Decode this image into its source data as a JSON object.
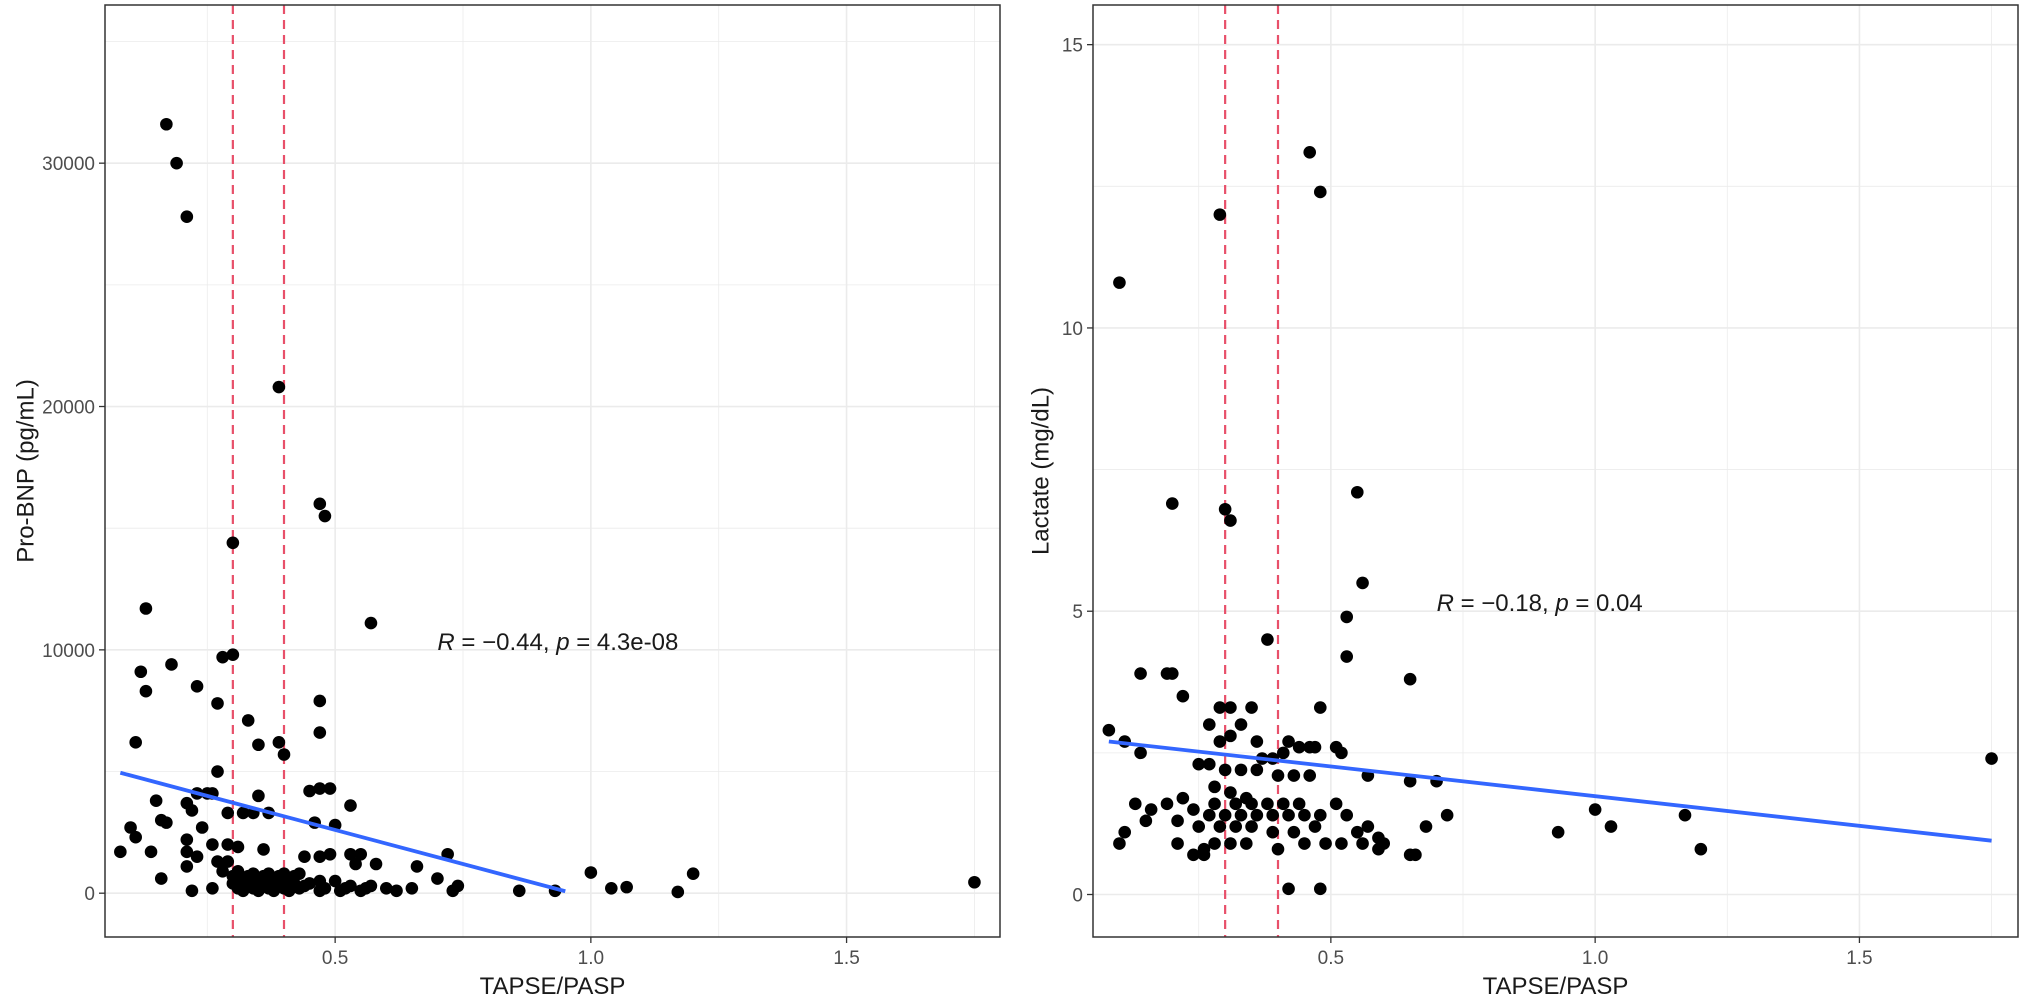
{
  "colors": {
    "points": "#000000",
    "fit_line": "#3366FF",
    "cutoff_lines": "#E8506A",
    "panel_border": "#333333",
    "grid": "#EBEBEB"
  },
  "chart_data": [
    {
      "type": "scatter",
      "xlabel": "TAPSE/PASP",
      "ylabel": "Pro-BNP (pg/mL)",
      "xlim": [
        0.05,
        1.8
      ],
      "ylim": [
        -1800,
        36500
      ],
      "x_ticks": [
        0.5,
        1.0,
        1.5
      ],
      "x_tick_labels": [
        "0.5",
        "1.0",
        "1.5"
      ],
      "y_ticks": [
        0,
        10000,
        20000,
        30000
      ],
      "y_tick_labels": [
        "0",
        "10000",
        "20000",
        "30000"
      ],
      "grid": true,
      "vlines": [
        0.3,
        0.4
      ],
      "fit_line": {
        "x": [
          0.08,
          0.95
        ],
        "y": [
          4950,
          80
        ]
      },
      "annotation": {
        "r_symbol": "R",
        "r_value": " = −0.44, ",
        "p_symbol": "p",
        "p_value": " = 4.3e-08",
        "x": 0.7,
        "y": 10000
      },
      "points": [
        [
          0.17,
          31600
        ],
        [
          0.19,
          30000
        ],
        [
          0.21,
          27800
        ],
        [
          0.39,
          20800
        ],
        [
          0.47,
          16000
        ],
        [
          0.48,
          15500
        ],
        [
          0.3,
          14400
        ],
        [
          0.13,
          11700
        ],
        [
          0.57,
          11100
        ],
        [
          0.3,
          9800
        ],
        [
          0.28,
          9700
        ],
        [
          0.18,
          9400
        ],
        [
          0.12,
          9100
        ],
        [
          0.23,
          8500
        ],
        [
          0.13,
          8300
        ],
        [
          0.47,
          7900
        ],
        [
          0.27,
          7800
        ],
        [
          0.33,
          7100
        ],
        [
          0.47,
          6600
        ],
        [
          0.11,
          6200
        ],
        [
          0.39,
          6200
        ],
        [
          0.35,
          6100
        ],
        [
          0.4,
          5700
        ],
        [
          0.27,
          5000
        ],
        [
          0.47,
          4300
        ],
        [
          0.49,
          4300
        ],
        [
          0.45,
          4200
        ],
        [
          0.23,
          4100
        ],
        [
          0.25,
          4100
        ],
        [
          0.26,
          4100
        ],
        [
          0.35,
          4000
        ],
        [
          0.15,
          3800
        ],
        [
          0.21,
          3700
        ],
        [
          0.53,
          3600
        ],
        [
          0.22,
          3400
        ],
        [
          0.29,
          3300
        ],
        [
          0.32,
          3300
        ],
        [
          0.34,
          3300
        ],
        [
          0.37,
          3300
        ],
        [
          0.16,
          3000
        ],
        [
          0.17,
          2900
        ],
        [
          0.46,
          2900
        ],
        [
          0.5,
          2800
        ],
        [
          0.1,
          2700
        ],
        [
          0.24,
          2700
        ],
        [
          0.11,
          2300
        ],
        [
          0.21,
          2200
        ],
        [
          0.26,
          2000
        ],
        [
          0.29,
          2000
        ],
        [
          0.31,
          1900
        ],
        [
          0.36,
          1800
        ],
        [
          0.08,
          1700
        ],
        [
          0.14,
          1700
        ],
        [
          0.21,
          1700
        ],
        [
          0.23,
          1500
        ],
        [
          0.44,
          1500
        ],
        [
          0.47,
          1500
        ],
        [
          0.49,
          1600
        ],
        [
          0.53,
          1600
        ],
        [
          0.55,
          1600
        ],
        [
          0.72,
          1600
        ],
        [
          0.27,
          1300
        ],
        [
          0.29,
          1300
        ],
        [
          0.21,
          1100
        ],
        [
          0.66,
          1100
        ],
        [
          0.58,
          1200
        ],
        [
          0.54,
          1200
        ],
        [
          0.28,
          900
        ],
        [
          0.31,
          900
        ],
        [
          0.34,
          800
        ],
        [
          0.37,
          800
        ],
        [
          0.4,
          800
        ],
        [
          0.43,
          800
        ],
        [
          0.3,
          700
        ],
        [
          0.33,
          700
        ],
        [
          0.36,
          700
        ],
        [
          0.39,
          700
        ],
        [
          0.42,
          700
        ],
        [
          0.7,
          600
        ],
        [
          0.16,
          600
        ],
        [
          0.32,
          600
        ],
        [
          0.35,
          600
        ],
        [
          0.38,
          600
        ],
        [
          0.41,
          600
        ],
        [
          0.47,
          500
        ],
        [
          0.5,
          500
        ],
        [
          0.3,
          400
        ],
        [
          0.33,
          400
        ],
        [
          0.36,
          400
        ],
        [
          0.39,
          400
        ],
        [
          0.42,
          400
        ],
        [
          0.45,
          400
        ],
        [
          0.31,
          300
        ],
        [
          0.34,
          300
        ],
        [
          0.37,
          300
        ],
        [
          0.4,
          300
        ],
        [
          0.44,
          300
        ],
        [
          0.53,
          300
        ],
        [
          0.57,
          300
        ],
        [
          0.74,
          300
        ],
        [
          0.31,
          200
        ],
        [
          0.34,
          200
        ],
        [
          0.37,
          200
        ],
        [
          0.4,
          200
        ],
        [
          0.43,
          200
        ],
        [
          0.48,
          200
        ],
        [
          0.52,
          200
        ],
        [
          0.56,
          200
        ],
        [
          0.6,
          200
        ],
        [
          0.65,
          200
        ],
        [
          0.32,
          100
        ],
        [
          0.35,
          100
        ],
        [
          0.38,
          100
        ],
        [
          0.41,
          100
        ],
        [
          0.47,
          100
        ],
        [
          0.51,
          100
        ],
        [
          0.55,
          100
        ],
        [
          0.62,
          100
        ],
        [
          0.73,
          100
        ],
        [
          0.86,
          100
        ],
        [
          0.93,
          100
        ],
        [
          0.22,
          100
        ],
        [
          0.26,
          200
        ],
        [
          1.0,
          850
        ],
        [
          1.04,
          200
        ],
        [
          1.07,
          250
        ],
        [
          1.17,
          50
        ],
        [
          1.2,
          800
        ],
        [
          1.75,
          450
        ]
      ]
    },
    {
      "type": "scatter",
      "xlabel": "TAPSE/PASP",
      "ylabel": "Lactate (mg/dL)",
      "xlim": [
        0.05,
        1.8
      ],
      "ylim": [
        -0.75,
        15.7
      ],
      "x_ticks": [
        0.5,
        1.0,
        1.5
      ],
      "x_tick_labels": [
        "0.5",
        "1.0",
        "1.5"
      ],
      "y_ticks": [
        0,
        5,
        10,
        15
      ],
      "y_tick_labels": [
        "0",
        "5",
        "10",
        "15"
      ],
      "grid": true,
      "vlines": [
        0.3,
        0.4
      ],
      "fit_line": {
        "x": [
          0.08,
          1.75
        ],
        "y": [
          2.7,
          0.95
        ]
      },
      "annotation": {
        "r_symbol": "R",
        "r_value": " = −0.18, ",
        "p_symbol": "p",
        "p_value": " = 0.04",
        "x": 0.7,
        "y": 5.0
      },
      "points": [
        [
          0.46,
          13.1
        ],
        [
          0.48,
          12.4
        ],
        [
          0.29,
          12.0
        ],
        [
          0.1,
          10.8
        ],
        [
          0.55,
          7.1
        ],
        [
          0.2,
          6.9
        ],
        [
          0.3,
          6.8
        ],
        [
          0.31,
          6.6
        ],
        [
          0.56,
          5.5
        ],
        [
          0.53,
          4.9
        ],
        [
          0.38,
          4.5
        ],
        [
          0.53,
          4.2
        ],
        [
          0.14,
          3.9
        ],
        [
          0.19,
          3.9
        ],
        [
          0.2,
          3.9
        ],
        [
          0.65,
          3.8
        ],
        [
          0.22,
          3.5
        ],
        [
          0.29,
          3.3
        ],
        [
          0.31,
          3.3
        ],
        [
          0.35,
          3.3
        ],
        [
          0.48,
          3.3
        ],
        [
          0.27,
          3.0
        ],
        [
          0.33,
          3.0
        ],
        [
          0.08,
          2.9
        ],
        [
          0.31,
          2.8
        ],
        [
          0.11,
          2.7
        ],
        [
          0.29,
          2.7
        ],
        [
          0.36,
          2.7
        ],
        [
          0.42,
          2.7
        ],
        [
          0.44,
          2.6
        ],
        [
          0.46,
          2.6
        ],
        [
          0.47,
          2.6
        ],
        [
          0.51,
          2.6
        ],
        [
          0.52,
          2.5
        ],
        [
          0.14,
          2.5
        ],
        [
          0.41,
          2.5
        ],
        [
          0.37,
          2.4
        ],
        [
          0.39,
          2.4
        ],
        [
          0.25,
          2.3
        ],
        [
          0.27,
          2.3
        ],
        [
          0.3,
          2.2
        ],
        [
          0.33,
          2.2
        ],
        [
          0.36,
          2.2
        ],
        [
          0.4,
          2.1
        ],
        [
          0.43,
          2.1
        ],
        [
          0.46,
          2.1
        ],
        [
          0.57,
          2.1
        ],
        [
          0.65,
          2.0
        ],
        [
          0.7,
          2.0
        ],
        [
          0.28,
          1.9
        ],
        [
          0.31,
          1.8
        ],
        [
          0.34,
          1.7
        ],
        [
          0.22,
          1.7
        ],
        [
          0.13,
          1.6
        ],
        [
          0.16,
          1.5
        ],
        [
          0.19,
          1.6
        ],
        [
          0.28,
          1.6
        ],
        [
          0.32,
          1.6
        ],
        [
          0.35,
          1.6
        ],
        [
          0.38,
          1.6
        ],
        [
          0.41,
          1.6
        ],
        [
          0.44,
          1.6
        ],
        [
          0.51,
          1.6
        ],
        [
          0.24,
          1.5
        ],
        [
          0.27,
          1.4
        ],
        [
          0.3,
          1.4
        ],
        [
          0.33,
          1.4
        ],
        [
          0.36,
          1.4
        ],
        [
          0.39,
          1.4
        ],
        [
          0.42,
          1.4
        ],
        [
          0.45,
          1.4
        ],
        [
          0.48,
          1.4
        ],
        [
          0.53,
          1.4
        ],
        [
          0.72,
          1.4
        ],
        [
          0.15,
          1.3
        ],
        [
          0.21,
          1.3
        ],
        [
          0.25,
          1.2
        ],
        [
          0.29,
          1.2
        ],
        [
          0.32,
          1.2
        ],
        [
          0.35,
          1.2
        ],
        [
          0.47,
          1.2
        ],
        [
          0.57,
          1.2
        ],
        [
          0.68,
          1.2
        ],
        [
          0.11,
          1.1
        ],
        [
          0.39,
          1.1
        ],
        [
          0.43,
          1.1
        ],
        [
          0.55,
          1.1
        ],
        [
          0.59,
          1.0
        ],
        [
          0.1,
          0.9
        ],
        [
          0.21,
          0.9
        ],
        [
          0.28,
          0.9
        ],
        [
          0.31,
          0.9
        ],
        [
          0.34,
          0.9
        ],
        [
          0.45,
          0.9
        ],
        [
          0.49,
          0.9
        ],
        [
          0.52,
          0.9
        ],
        [
          0.56,
          0.9
        ],
        [
          0.6,
          0.9
        ],
        [
          0.26,
          0.8
        ],
        [
          0.4,
          0.8
        ],
        [
          0.59,
          0.8
        ],
        [
          0.24,
          0.7
        ],
        [
          0.26,
          0.7
        ],
        [
          0.65,
          0.7
        ],
        [
          0.66,
          0.7
        ],
        [
          0.42,
          0.1
        ],
        [
          0.48,
          0.1
        ],
        [
          0.93,
          1.1
        ],
        [
          1.0,
          1.5
        ],
        [
          1.03,
          1.2
        ],
        [
          1.17,
          1.4
        ],
        [
          1.2,
          0.8
        ],
        [
          1.75,
          2.4
        ]
      ]
    }
  ]
}
